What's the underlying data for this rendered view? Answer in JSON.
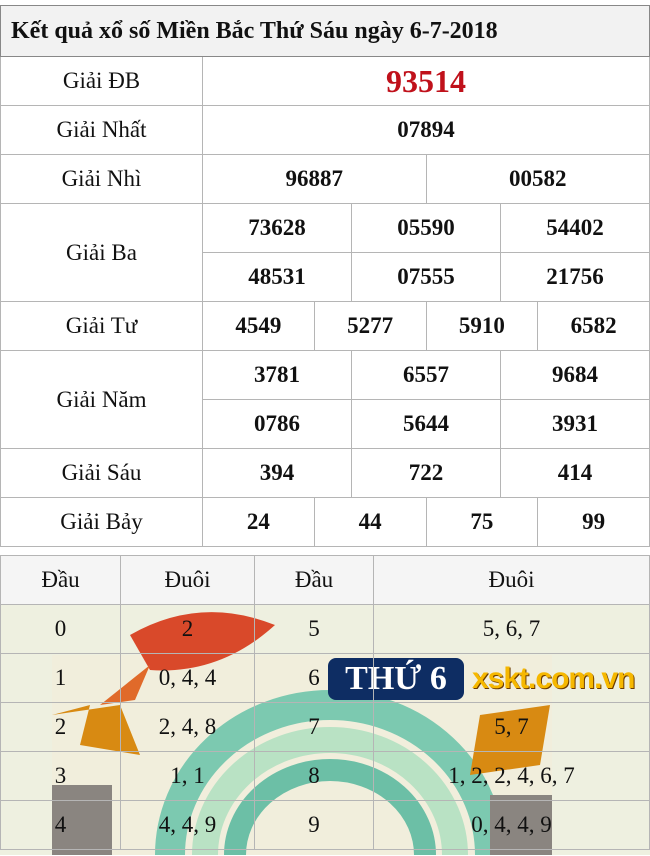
{
  "title": "Kết quả xổ số Miền Bắc Thứ Sáu ngày 6-7-2018",
  "prizes": {
    "db": {
      "label": "Giải ĐB",
      "numbers": [
        "93514"
      ]
    },
    "nhat": {
      "label": "Giải Nhất",
      "numbers": [
        "07894"
      ]
    },
    "nhi": {
      "label": "Giải Nhì",
      "numbers": [
        "96887",
        "00582"
      ]
    },
    "ba": {
      "label": "Giải Ba",
      "numbers": [
        "73628",
        "05590",
        "54402",
        "48531",
        "07555",
        "21756"
      ]
    },
    "tu": {
      "label": "Giải Tư",
      "numbers": [
        "4549",
        "5277",
        "5910",
        "6582"
      ]
    },
    "nam": {
      "label": "Giải Năm",
      "numbers": [
        "3781",
        "6557",
        "9684",
        "0786",
        "5644",
        "3931"
      ]
    },
    "sau": {
      "label": "Giải Sáu",
      "numbers": [
        "394",
        "722",
        "414"
      ]
    },
    "bay": {
      "label": "Giải Bảy",
      "numbers": [
        "24",
        "44",
        "75",
        "99"
      ]
    }
  },
  "loto": {
    "headers": [
      "Đầu",
      "Đuôi",
      "Đầu",
      "Đuôi"
    ],
    "rows": [
      {
        "d1": "0",
        "t1": "2",
        "d2": "5",
        "t2": "5, 6, 7"
      },
      {
        "d1": "1",
        "t1": "0, 4, 4",
        "d2": "6",
        "t2": ""
      },
      {
        "d1": "2",
        "t1": "2, 4, 8",
        "d2": "7",
        "t2": "5, 7"
      },
      {
        "d1": "3",
        "t1": "1, 1",
        "d2": "8",
        "t2": "1, 2, 2, 4, 6, 7"
      },
      {
        "d1": "4",
        "t1": "4, 4, 9",
        "d2": "9",
        "t2": "0, 4, 4, 9"
      }
    ]
  },
  "banner": "THỨ 6",
  "watermark": "xskt.com.vn",
  "colors": {
    "special": "#c0111b",
    "banner": "#0e2d63",
    "watermark": "#f6b800"
  }
}
